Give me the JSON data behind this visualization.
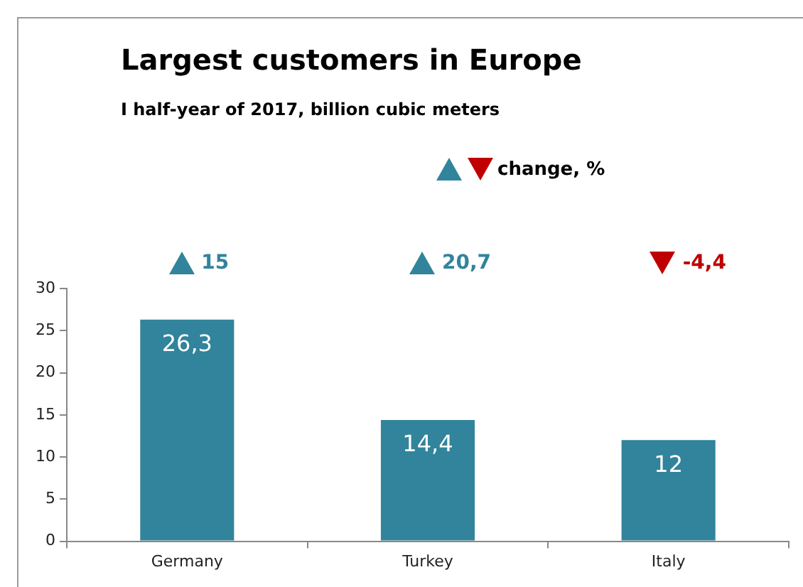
{
  "chart_data": {
    "type": "bar",
    "title": "Largest customers in Europe",
    "subtitle": "I half-year of 2017,  billion cubic meters",
    "categories": [
      "Germany",
      "Turkey",
      "Italy"
    ],
    "values": [
      26.3,
      14.4,
      12
    ],
    "value_labels": [
      "26,3",
      "14,4",
      "12"
    ],
    "color": "#31849b",
    "ylim": [
      0,
      30
    ],
    "yticks": [
      0,
      5,
      10,
      15,
      20,
      25,
      30
    ],
    "grid": false,
    "legend": false,
    "legend_title": "change, %",
    "annotations": [
      "15",
      "20,7",
      "-4,4"
    ]
  }
}
